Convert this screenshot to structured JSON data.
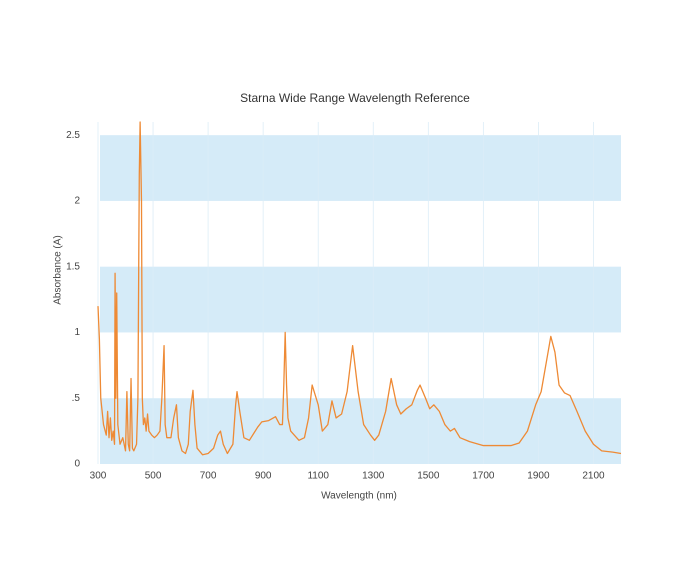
{
  "chart_data": {
    "type": "line",
    "title": "Starna Wide Range Wavelength Reference",
    "x_label": "Wavelength (nm)",
    "y_label": "Absorbance (A)",
    "color": "#ee8a35",
    "band_color": "#d5ebf8",
    "grid_color": "#dcedf7",
    "grid": true,
    "xlim": [
      300,
      2200
    ],
    "ylim": [
      0,
      2.6
    ],
    "xticks": [
      300,
      500,
      700,
      900,
      1100,
      1300,
      1500,
      1700,
      1900,
      2100
    ],
    "yticks": [
      0,
      {
        "value": 0.5,
        "label": ".5"
      },
      1,
      1.5,
      2,
      2.5
    ],
    "x": [
      300,
      305,
      310,
      320,
      330,
      335,
      340,
      345,
      350,
      355,
      360,
      362,
      365,
      368,
      372,
      380,
      390,
      400,
      405,
      410,
      415,
      420,
      425,
      430,
      440,
      445,
      450,
      453,
      458,
      461,
      465,
      470,
      475,
      480,
      485,
      495,
      505,
      515,
      525,
      532,
      540,
      544,
      550,
      565,
      575,
      585,
      592,
      605,
      618,
      628,
      635,
      645,
      652,
      660,
      680,
      700,
      720,
      735,
      745,
      755,
      770,
      790,
      800,
      805,
      815,
      830,
      850,
      880,
      895,
      920,
      945,
      960,
      970,
      975,
      980,
      985,
      990,
      1000,
      1030,
      1050,
      1065,
      1078,
      1100,
      1115,
      1135,
      1150,
      1165,
      1185,
      1205,
      1225,
      1245,
      1265,
      1290,
      1305,
      1320,
      1345,
      1365,
      1385,
      1400,
      1420,
      1440,
      1460,
      1470,
      1490,
      1505,
      1520,
      1540,
      1560,
      1580,
      1595,
      1615,
      1650,
      1700,
      1800,
      1830,
      1860,
      1890,
      1910,
      1935,
      1945,
      1960,
      1975,
      1995,
      2015,
      2040,
      2070,
      2100,
      2130,
      2170,
      2200
    ],
    "values": [
      1.2,
      0.95,
      0.5,
      0.3,
      0.22,
      0.4,
      0.2,
      0.35,
      0.18,
      0.25,
      0.15,
      1.45,
      0.5,
      1.3,
      0.3,
      0.15,
      0.2,
      0.1,
      0.55,
      0.15,
      0.1,
      0.65,
      0.12,
      0.1,
      0.15,
      0.5,
      2.2,
      2.6,
      2.0,
      0.5,
      0.3,
      0.35,
      0.25,
      0.38,
      0.25,
      0.22,
      0.2,
      0.22,
      0.25,
      0.5,
      0.9,
      0.3,
      0.2,
      0.2,
      0.35,
      0.45,
      0.2,
      0.1,
      0.08,
      0.15,
      0.4,
      0.56,
      0.3,
      0.12,
      0.07,
      0.08,
      0.12,
      0.22,
      0.25,
      0.15,
      0.08,
      0.15,
      0.45,
      0.55,
      0.4,
      0.2,
      0.18,
      0.28,
      0.32,
      0.33,
      0.36,
      0.3,
      0.3,
      0.6,
      1.0,
      0.6,
      0.35,
      0.25,
      0.18,
      0.2,
      0.35,
      0.6,
      0.45,
      0.25,
      0.3,
      0.48,
      0.35,
      0.38,
      0.55,
      0.9,
      0.55,
      0.3,
      0.22,
      0.18,
      0.22,
      0.4,
      0.65,
      0.45,
      0.38,
      0.42,
      0.45,
      0.56,
      0.6,
      0.5,
      0.42,
      0.45,
      0.4,
      0.3,
      0.25,
      0.27,
      0.2,
      0.17,
      0.14,
      0.14,
      0.16,
      0.25,
      0.45,
      0.55,
      0.85,
      0.97,
      0.85,
      0.6,
      0.54,
      0.52,
      0.4,
      0.25,
      0.15,
      0.1,
      0.09,
      0.08
    ]
  }
}
